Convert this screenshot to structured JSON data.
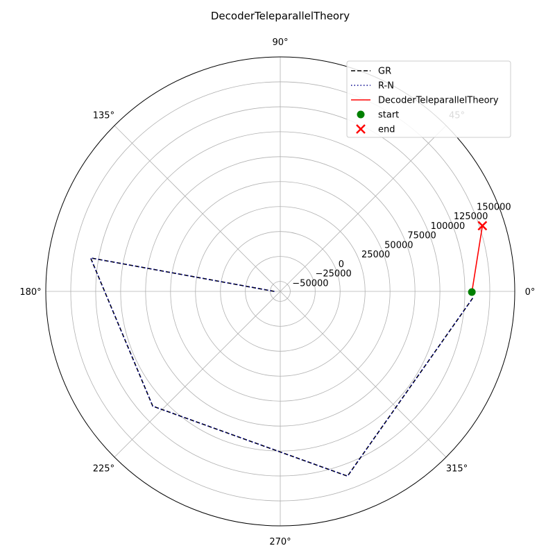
{
  "chart_data": {
    "type": "line",
    "projection": "polar",
    "title": "DecoderTeleparallelTheory",
    "theta_unit": "degrees",
    "theta_ticks": [
      0,
      45,
      90,
      135,
      180,
      225,
      270,
      315
    ],
    "theta_tick_labels": [
      "0°",
      "45°",
      "90°",
      "135°",
      "180°",
      "225°",
      "270°",
      "315°"
    ],
    "r_ticks": [
      -50000,
      -25000,
      0,
      25000,
      50000,
      75000,
      100000,
      125000,
      150000
    ],
    "r_tick_labels": [
      "−50000",
      "−25000",
      "0",
      "25000",
      "50000",
      "75000",
      "100000",
      "125000",
      "150000"
    ],
    "rlim": [
      -60000,
      175000
    ],
    "grid": true,
    "legend_position": "top-right",
    "series": [
      {
        "name": "GR",
        "color": "#000000",
        "linestyle": "dashed",
        "points": [
          {
            "theta": 180,
            "r": -54000
          },
          {
            "theta": 170,
            "r": 133000
          },
          {
            "theta": 222,
            "r": 112000
          },
          {
            "theta": 290,
            "r": 137000
          },
          {
            "theta": 358,
            "r": 133000
          }
        ]
      },
      {
        "name": "R-N",
        "color": "#00008b",
        "linestyle": "dotted",
        "points": [
          {
            "theta": 180,
            "r": -54000
          },
          {
            "theta": 170,
            "r": 133000
          },
          {
            "theta": 222,
            "r": 112000
          },
          {
            "theta": 290,
            "r": 137000
          },
          {
            "theta": 358,
            "r": 133000
          }
        ]
      },
      {
        "name": "DecoderTeleparallelTheory",
        "color": "#ff0000",
        "linestyle": "solid",
        "points": [
          {
            "theta": 359.8,
            "r": 132000
          },
          {
            "theta": 18,
            "r": 153000
          }
        ]
      }
    ],
    "markers": [
      {
        "name": "start",
        "color": "#008000",
        "shape": "circle",
        "theta": 359.8,
        "r": 132000
      },
      {
        "name": "end",
        "color": "#ff0000",
        "shape": "x",
        "theta": 18,
        "r": 153000
      }
    ]
  }
}
